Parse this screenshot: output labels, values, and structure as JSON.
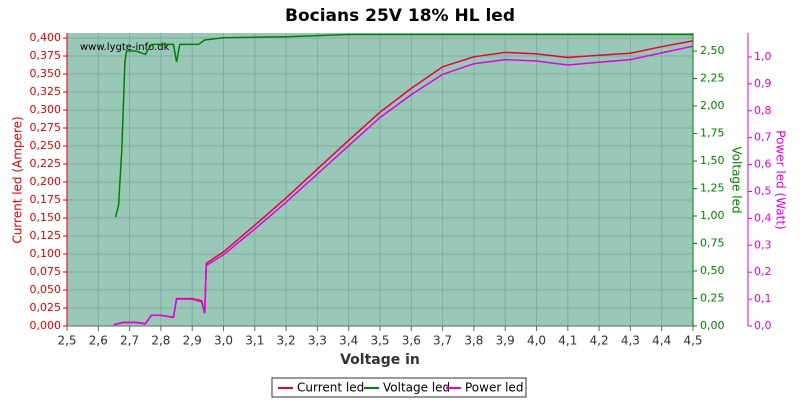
{
  "chart_data": {
    "type": "line",
    "title": "Bocians 25V 18% HL led",
    "xlabel": "Voltage in",
    "ylabel": "Current led (Ampere)",
    "y2label": "Voltage led",
    "y3label": "Power led (Watt)",
    "annotation": "www.lygte-info.dk",
    "grid": true,
    "legend": "bottom",
    "background": "#99c8b8",
    "xlim": [
      2.5,
      4.5
    ],
    "xticks": [
      {
        "value": 2.5,
        "label": "2,5"
      },
      {
        "value": 2.6,
        "label": "2,6"
      },
      {
        "value": 2.7,
        "label": "2,7"
      },
      {
        "value": 2.8,
        "label": "2,8"
      },
      {
        "value": 2.9,
        "label": "2,9"
      },
      {
        "value": 3.0,
        "label": "3,0"
      },
      {
        "value": 3.1,
        "label": "3,1"
      },
      {
        "value": 3.2,
        "label": "3,2"
      },
      {
        "value": 3.3,
        "label": "3,3"
      },
      {
        "value": 3.4,
        "label": "3,4"
      },
      {
        "value": 3.5,
        "label": "3,5"
      },
      {
        "value": 3.6,
        "label": "3,6"
      },
      {
        "value": 3.7,
        "label": "3,7"
      },
      {
        "value": 3.8,
        "label": "3,8"
      },
      {
        "value": 3.9,
        "label": "3,9"
      },
      {
        "value": 4.0,
        "label": "4,0"
      },
      {
        "value": 4.1,
        "label": "4,1"
      },
      {
        "value": 4.2,
        "label": "4,2"
      },
      {
        "value": 4.3,
        "label": "4,3"
      },
      {
        "value": 4.4,
        "label": "4,4"
      },
      {
        "value": 4.5,
        "label": "4,5"
      }
    ],
    "ylim": [
      0,
      0.407
    ],
    "yticks": [
      {
        "value": 0,
        "label": "0,000"
      },
      {
        "value": 0.025,
        "label": "0,025"
      },
      {
        "value": 0.05,
        "label": "0,050"
      },
      {
        "value": 0.075,
        "label": "0,075"
      },
      {
        "value": 0.1,
        "label": "0,100"
      },
      {
        "value": 0.125,
        "label": "0,125"
      },
      {
        "value": 0.15,
        "label": "0,150"
      },
      {
        "value": 0.175,
        "label": "0,175"
      },
      {
        "value": 0.2,
        "label": "0,200"
      },
      {
        "value": 0.225,
        "label": "0,225"
      },
      {
        "value": 0.25,
        "label": "0,250"
      },
      {
        "value": 0.275,
        "label": "0,275"
      },
      {
        "value": 0.3,
        "label": "0,300"
      },
      {
        "value": 0.325,
        "label": "0,325"
      },
      {
        "value": 0.35,
        "label": "0,350"
      },
      {
        "value": 0.375,
        "label": "0,375"
      },
      {
        "value": 0.4,
        "label": "0,400"
      }
    ],
    "y2lim": [
      0,
      2.664
    ],
    "y2ticks": [
      {
        "value": 0,
        "label": "0,00"
      },
      {
        "value": 0.25,
        "label": "0,25"
      },
      {
        "value": 0.5,
        "label": "0,50"
      },
      {
        "value": 0.75,
        "label": "0,75"
      },
      {
        "value": 1.0,
        "label": "1,00"
      },
      {
        "value": 1.25,
        "label": "1,25"
      },
      {
        "value": 1.5,
        "label": "1,50"
      },
      {
        "value": 1.75,
        "label": "1,75"
      },
      {
        "value": 2.0,
        "label": "2,00"
      },
      {
        "value": 2.25,
        "label": "2,25"
      },
      {
        "value": 2.5,
        "label": "2,50"
      }
    ],
    "y3lim": [
      0,
      1.089
    ],
    "y3ticks": [
      {
        "value": 0,
        "label": "0,0"
      },
      {
        "value": 0.1,
        "label": "0,1"
      },
      {
        "value": 0.2,
        "label": "0,2"
      },
      {
        "value": 0.3,
        "label": "0,3"
      },
      {
        "value": 0.4,
        "label": "0,4"
      },
      {
        "value": 0.5,
        "label": "0,5"
      },
      {
        "value": 0.6,
        "label": "0,6"
      },
      {
        "value": 0.7,
        "label": "0,7"
      },
      {
        "value": 0.8,
        "label": "0,8"
      },
      {
        "value": 0.9,
        "label": "0,9"
      },
      {
        "value": 1.0,
        "label": "1,0"
      }
    ],
    "series": [
      {
        "name": "Current led",
        "color": "#e8003c",
        "axis": "y",
        "x": [
          2.65,
          2.68,
          2.72,
          2.75,
          2.77,
          2.8,
          2.84,
          2.85,
          2.9,
          2.93,
          2.94,
          2.945,
          3.0,
          3.1,
          3.2,
          3.3,
          3.4,
          3.5,
          3.6,
          3.7,
          3.8,
          3.9,
          4.0,
          4.1,
          4.2,
          4.3,
          4.4,
          4.5
        ],
        "values": [
          0.002,
          0.005,
          0.005,
          0.003,
          0.015,
          0.015,
          0.012,
          0.038,
          0.038,
          0.035,
          0.018,
          0.087,
          0.103,
          0.14,
          0.178,
          0.218,
          0.258,
          0.297,
          0.33,
          0.36,
          0.374,
          0.38,
          0.378,
          0.373,
          0.376,
          0.379,
          0.388,
          0.396
        ]
      },
      {
        "name": "Voltage led",
        "color": "#008000",
        "axis": "y2",
        "x": [
          2.655,
          2.665,
          2.675,
          2.685,
          2.69,
          2.72,
          2.75,
          2.77,
          2.84,
          2.85,
          2.86,
          2.92,
          2.94,
          3.0,
          3.2,
          3.4,
          4.5
        ],
        "values": [
          0.99,
          1.1,
          1.6,
          2.4,
          2.5,
          2.5,
          2.47,
          2.56,
          2.56,
          2.4,
          2.56,
          2.56,
          2.6,
          2.62,
          2.63,
          2.65,
          2.65
        ]
      },
      {
        "name": "Power led",
        "color": "#e000e0",
        "axis": "y3",
        "x": [
          2.65,
          2.68,
          2.72,
          2.75,
          2.77,
          2.8,
          2.84,
          2.85,
          2.9,
          2.93,
          2.94,
          2.945,
          3.0,
          3.1,
          3.2,
          3.3,
          3.4,
          3.5,
          3.6,
          3.7,
          3.8,
          3.9,
          4.0,
          4.1,
          4.2,
          4.3,
          4.4,
          4.5
        ],
        "values": [
          0.005,
          0.013,
          0.013,
          0.008,
          0.04,
          0.04,
          0.032,
          0.1,
          0.1,
          0.09,
          0.047,
          0.225,
          0.265,
          0.36,
          0.46,
          0.565,
          0.67,
          0.775,
          0.86,
          0.935,
          0.975,
          0.99,
          0.985,
          0.97,
          0.98,
          0.99,
          1.015,
          1.04
        ]
      }
    ]
  }
}
